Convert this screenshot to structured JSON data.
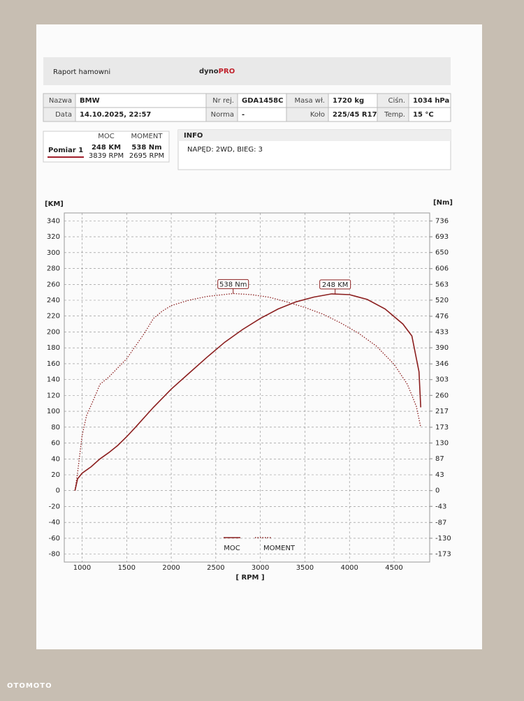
{
  "header": {
    "title": "Raport hamowni",
    "logo_a": "dyno",
    "logo_b": "PRO"
  },
  "table": {
    "rows": [
      [
        "Nazwa",
        "BMW",
        "Nr rej.",
        "GDA1458C",
        "Masa wł.",
        "1720 kg",
        "Ciśn.",
        "1034 hPa"
      ],
      [
        "Data",
        "14.10.2025, 22:57",
        "Norma",
        "-",
        "Koło",
        "225/45 R17",
        "Temp.",
        "15 °C"
      ]
    ]
  },
  "measurement": {
    "name": "Pomiar 1",
    "headers": [
      "MOC",
      "MOMENT"
    ],
    "values": [
      "248 KM",
      "538 Nm"
    ],
    "rpm": [
      "3839 RPM",
      "2695 RPM"
    ]
  },
  "info": {
    "title": "INFO",
    "text": "NAPĘD: 2WD, BIEG: 3"
  },
  "watermark": "OTOMOTO",
  "chart_data": {
    "type": "line",
    "y_label": "[KM]",
    "y2_label": "[Nm]",
    "x_label": "[ RPM ]",
    "grid": true,
    "xlim": [
      800,
      4900
    ],
    "xticks": [
      1000,
      1500,
      2000,
      2500,
      3000,
      3500,
      4000,
      4500
    ],
    "ylim": [
      -90,
      350
    ],
    "yticks": [
      -80,
      -60,
      -40,
      -20,
      0,
      20,
      40,
      60,
      80,
      100,
      120,
      140,
      160,
      180,
      200,
      220,
      240,
      260,
      280,
      300,
      320,
      340
    ],
    "y2lim": [
      -195,
      758
    ],
    "y2ticks": [
      -173,
      -130,
      -87,
      -43,
      0,
      43,
      87,
      130,
      173,
      217,
      260,
      303,
      346,
      390,
      433,
      476,
      520,
      563,
      606,
      650,
      693,
      736
    ],
    "series": [
      {
        "name": "MOC",
        "color": "#8b1e1e",
        "style": "solid",
        "x": [
          920,
          950,
          1000,
          1100,
          1200,
          1300,
          1400,
          1500,
          1600,
          1800,
          2000,
          2200,
          2400,
          2600,
          2800,
          3000,
          3200,
          3400,
          3600,
          3800,
          4000,
          4200,
          4400,
          4600,
          4700,
          4780,
          4800
        ],
        "values": [
          0,
          15,
          22,
          30,
          40,
          48,
          57,
          68,
          80,
          105,
          128,
          148,
          168,
          187,
          203,
          217,
          229,
          238,
          244,
          248,
          247,
          241,
          229,
          210,
          195,
          150,
          105
        ]
      },
      {
        "name": "MOMENT",
        "color": "#8b1e1e",
        "style": "dotted",
        "axis": "y2",
        "x": [
          920,
          950,
          1000,
          1050,
          1150,
          1200,
          1300,
          1400,
          1500,
          1600,
          1700,
          1800,
          1900,
          2000,
          2200,
          2400,
          2695,
          2900,
          3100,
          3300,
          3500,
          3700,
          3900,
          4100,
          4300,
          4500,
          4650,
          4750,
          4800
        ],
        "values": [
          0,
          50,
          150,
          205,
          260,
          290,
          310,
          335,
          360,
          395,
          430,
          470,
          490,
          505,
          520,
          530,
          538,
          535,
          528,
          515,
          500,
          482,
          458,
          430,
          395,
          345,
          290,
          230,
          173
        ]
      }
    ],
    "annotations": [
      {
        "text": "538 Nm",
        "x": 2695,
        "y": 538,
        "axis": "y2"
      },
      {
        "text": "248 KM",
        "x": 3839,
        "y": 248
      }
    ]
  }
}
